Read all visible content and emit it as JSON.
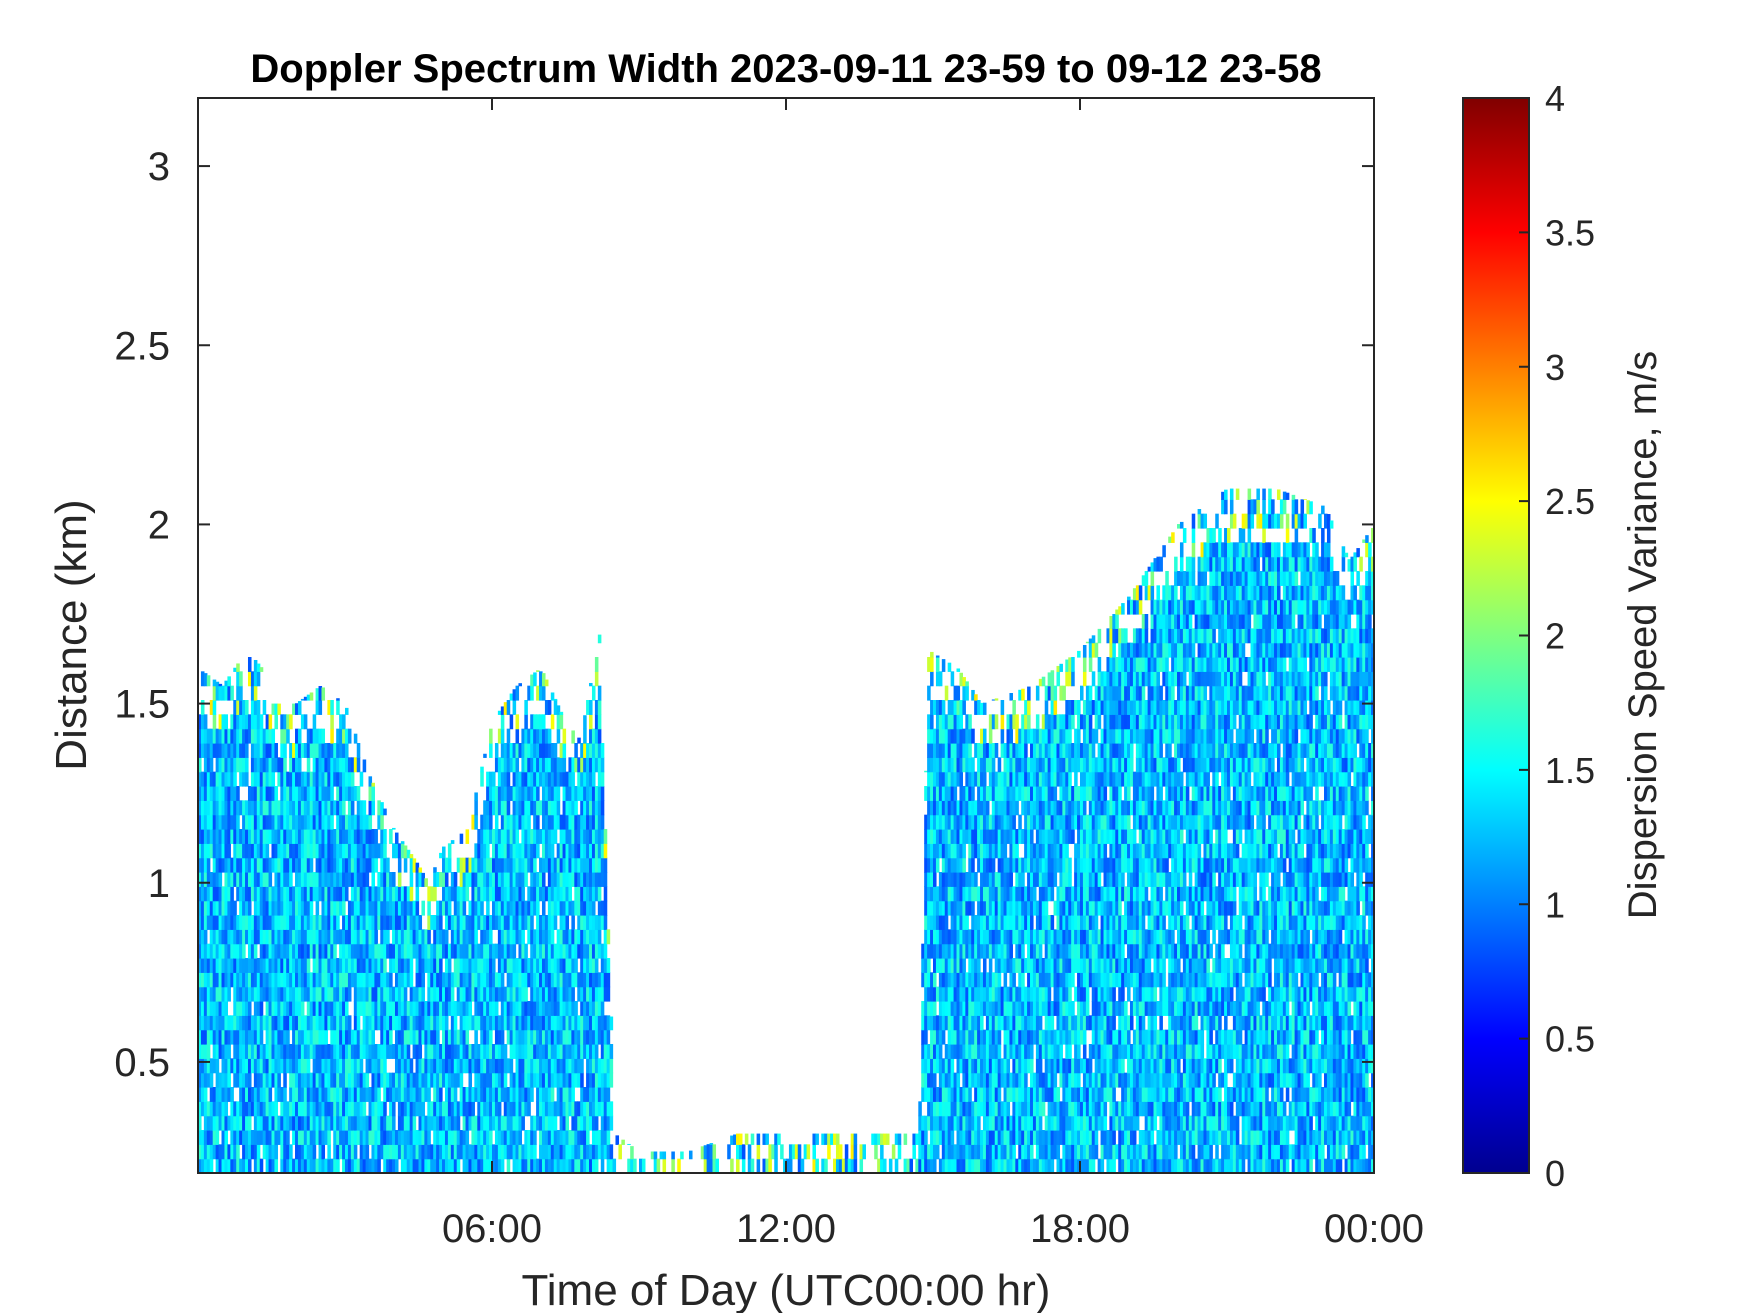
{
  "chart_data": {
    "type": "heatmap",
    "title": "Doppler Spectrum Width 2023-09-11 23-59 to 09-12 23-58",
    "xlabel": "Time of Day (UTC00:00 hr)",
    "ylabel": "Distance (km)",
    "xlim": [
      0,
      24
    ],
    "ylim": [
      0.19,
      3.19
    ],
    "x_ticks": [
      {
        "value": 6,
        "label": "06:00"
      },
      {
        "value": 12,
        "label": "12:00"
      },
      {
        "value": 18,
        "label": "18:00"
      },
      {
        "value": 24,
        "label": "00:00"
      }
    ],
    "y_ticks": [
      {
        "value": 0.5,
        "label": "0.5"
      },
      {
        "value": 1,
        "label": "1"
      },
      {
        "value": 1.5,
        "label": "1.5"
      },
      {
        "value": 2,
        "label": "2"
      },
      {
        "value": 2.5,
        "label": "2.5"
      },
      {
        "value": 3,
        "label": "3"
      }
    ],
    "colorbar": {
      "label": "Dispersion Speed Variance, m/s",
      "range": [
        0,
        4
      ],
      "colormap": "jet",
      "ticks": [
        {
          "value": 0,
          "label": "0"
        },
        {
          "value": 0.5,
          "label": "0.5"
        },
        {
          "value": 1,
          "label": "1"
        },
        {
          "value": 1.5,
          "label": "1.5"
        },
        {
          "value": 2,
          "label": "2"
        },
        {
          "value": 2.5,
          "label": "2.5"
        },
        {
          "value": 3,
          "label": "3"
        },
        {
          "value": 3.5,
          "label": "3.5"
        },
        {
          "value": 4,
          "label": "4"
        }
      ]
    },
    "grid": false,
    "coverage_profile": {
      "x_hours": [
        0,
        0.5,
        1.0,
        1.3,
        1.5,
        2.0,
        2.5,
        3.0,
        3.5,
        4.0,
        4.5,
        4.7,
        5.0,
        5.5,
        6.0,
        6.5,
        7.0,
        7.5,
        7.8,
        8.2,
        8.5,
        9.0,
        10.0,
        11.0,
        12.0,
        13.0,
        14.0,
        14.7,
        14.9,
        15.5,
        16.0,
        17.0,
        18.0,
        19.0,
        20.0,
        21.0,
        22.0,
        23.0,
        23.5,
        24.0
      ],
      "top_km": [
        1.6,
        1.55,
        1.65,
        1.6,
        1.5,
        1.5,
        1.55,
        1.5,
        1.3,
        1.15,
        1.05,
        1.0,
        1.1,
        1.15,
        1.45,
        1.55,
        1.6,
        1.45,
        1.4,
        1.7,
        0.3,
        0.25,
        0.25,
        0.3,
        0.3,
        0.3,
        0.3,
        0.3,
        1.65,
        1.6,
        1.5,
        1.55,
        1.65,
        1.8,
        2.0,
        2.1,
        2.1,
        2.05,
        1.9,
        2.0
      ],
      "value_range_m_s": [
        0.8,
        1.7
      ]
    }
  }
}
